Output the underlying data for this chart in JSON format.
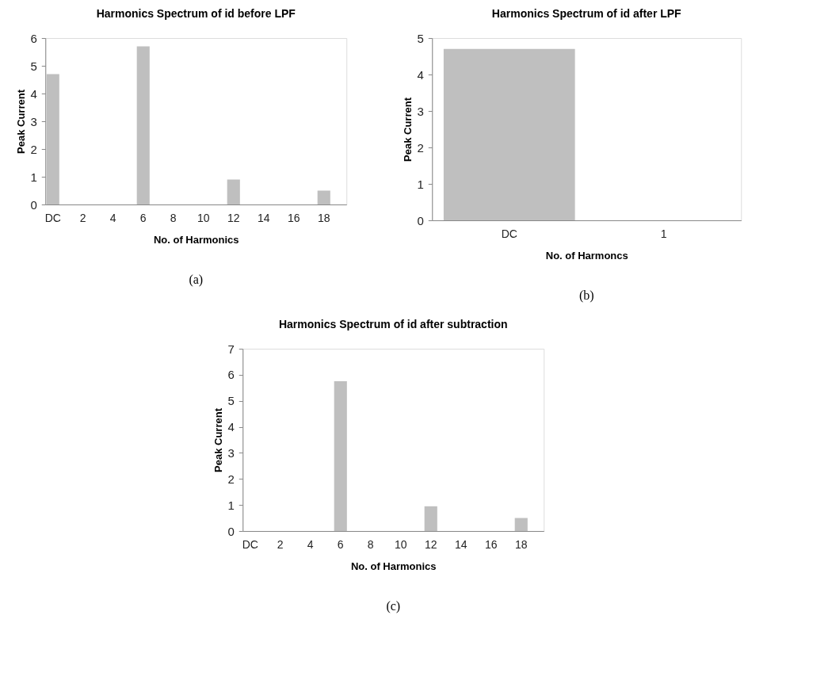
{
  "chart_data": [
    {
      "type": "bar",
      "title": "Harmonics Spectrum of id before LPF",
      "xlabel": "No. of Harmonics",
      "ylabel": "Peak Current",
      "categories": [
        "DC",
        null,
        "2",
        null,
        "4",
        null,
        "6",
        null,
        "8",
        null,
        "10",
        null,
        "12",
        null,
        "14",
        null,
        "16",
        null,
        "18",
        null
      ],
      "values": [
        4.7,
        0,
        0,
        0,
        0,
        0,
        5.7,
        0,
        0,
        0,
        0,
        0,
        0.9,
        0,
        0,
        0,
        0,
        0,
        0.5,
        0
      ],
      "color": "#bfbfbf",
      "ylim": [
        0,
        6
      ],
      "yticks": [
        0,
        1,
        2,
        3,
        4,
        5,
        6
      ],
      "grid": false,
      "annotations": [
        "(a)"
      ]
    },
    {
      "type": "bar",
      "title": "Harmonics  Spectrum of id after LPF",
      "xlabel": "No. of Harmoncs",
      "ylabel": "Peak Current",
      "categories": [
        "DC",
        "1"
      ],
      "values": [
        4.7,
        0
      ],
      "color": "#bfbfbf",
      "ylim": [
        0,
        5
      ],
      "yticks": [
        0,
        1,
        2,
        3,
        4,
        5
      ],
      "grid": false,
      "annotations": [
        "(b)"
      ]
    },
    {
      "type": "bar",
      "title": "Harmonics Spectrum of id after subtraction",
      "xlabel": "No. of Harmonics",
      "ylabel": "Peak Current",
      "categories": [
        "DC",
        null,
        "2",
        null,
        "4",
        null,
        "6",
        null,
        "8",
        null,
        "10",
        null,
        "12",
        null,
        "14",
        null,
        "16",
        null,
        "18",
        null
      ],
      "values": [
        0,
        0,
        0,
        0,
        0,
        0,
        5.75,
        0,
        0,
        0,
        0,
        0,
        0.95,
        0,
        0,
        0,
        0,
        0,
        0.5,
        0
      ],
      "color": "#bfbfbf",
      "ylim": [
        0,
        7
      ],
      "yticks": [
        0,
        1,
        2,
        3,
        4,
        5,
        6,
        7
      ],
      "grid": false,
      "annotations": [
        "(c)"
      ]
    }
  ]
}
